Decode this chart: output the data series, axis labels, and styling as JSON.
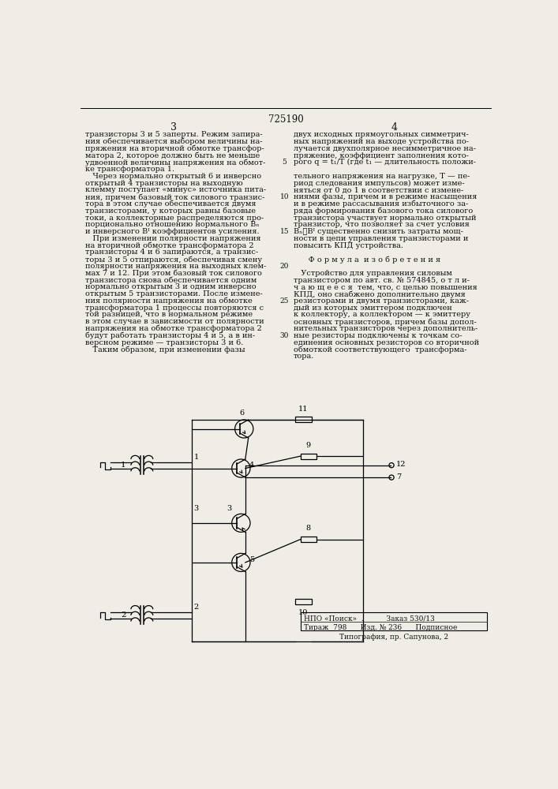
{
  "page_number": "725190",
  "col_left": "3",
  "col_right": "4",
  "bg_color": "#f0ede6",
  "text_color": "#111111",
  "left_col_lines": [
    "транзисторы 3 и 5 заперты. Режим запира-",
    "ния обеспечивается выбором величины на-",
    "пряжения на вторичной обмотке трансфор-",
    "матора 2, которое должно быть не меньше",
    "удвоенной величины напряжения на обмот-",
    "ке трансформатора 1.",
    "   Через нормально открытый 6 и инверсно",
    "открытый 4 транзисторы на выходную",
    "клемму поступает «минус» источника пита-",
    "ния, причем базовый ток силового транзис-",
    "тора в этом случае обеспечивается двумя",
    "транзисторами, у которых равны базовые",
    "токи, а коллекторные распределяются про-",
    "порционально отношению нормального Bₙ",
    "и инверсного Bᴵ коэффициентов усиления.",
    "   При изменении полярности напряжения",
    "на вторичной обмотке трансформатора 2",
    "транзисторы 4 и 6 запираются, а транзис-",
    "торы 3 и 5 отпираются, обеспечивая смену",
    "полярности напряжения на выходных клем-",
    "мах 7 и 12. При этом базовый ток силового",
    "транзистора снова обеспечивается одним",
    "нормально открытым 3 и одним инверсно",
    "открытым 5 транзисторами. После измене-",
    "ния полярности напряжения на обмотке",
    "трансформатора 1 процессы повторяются с",
    "той разницей, что в нормальном режиме",
    "в этом случае в зависимости от полярности",
    "напряжения на обмотке трансформатора 2",
    "будут работать транзисторы 4 и 5, а в ин-",
    "версном режиме — транзисторы 3 и 6.",
    "   Таким образом, при изменении фазы"
  ],
  "right_col_lines": [
    "двух исходных прямоугольных симметрич-",
    "ных напряжений на выходе устройства по-",
    "лучается двухполярное несимметричное на-",
    "пряжение, коэффициент заполнения кото-",
    "рого q = t₁/T (где t₁ — длительность положи-",
    "",
    "тельного напряжения на нагрузке, T — пе-",
    "риод следования импульсов) может изме-",
    "няться от 0 до 1 в соответствии с измене-",
    "ниями фазы, причем и в режиме насыщения",
    "и в режиме рассасывания избыточного за-",
    "ряда формирования базового тока силового",
    "транзистора участвует нормально открытый",
    "транзистор, что позволяет за счет условия",
    "Bₙ≫Bᴵ существенно снизить затраты мощ-",
    "ности в цепи управления транзисторами и",
    "повысить КПД устройства.",
    "",
    "      Ф о р м у л а  и з о б р е т е н и я",
    "",
    "   Устройство для управления силовым",
    "транзистором по авт. св. № 574845, о т л и-",
    "ч а ю щ е е с я  тем, что, с целью повышения",
    "КПД, оно снабжено дополнительно двумя",
    "резисторами и двумя транзисторами, каж-",
    "дый из которых эмиттером подключен",
    "к коллектору, а коллектором — к эмиттеру",
    "основных транзисторов, причем базы допол-",
    "нительных транзисторов через дополнитель-",
    "ные резисторы подключены к точкам со-",
    "единения основных резисторов со вторичной",
    "обмоткой соответствующего  трансформа-",
    "тора."
  ],
  "line_numbers": [
    5,
    10,
    15,
    20,
    25,
    30
  ],
  "publisher_line1": "НПО «Поиск»  .          Заказ 530/13",
  "publisher_line2": "Тираж  798      Изд. № 236      Подписное",
  "typography": "Типография, пр. Сапунова, 2"
}
